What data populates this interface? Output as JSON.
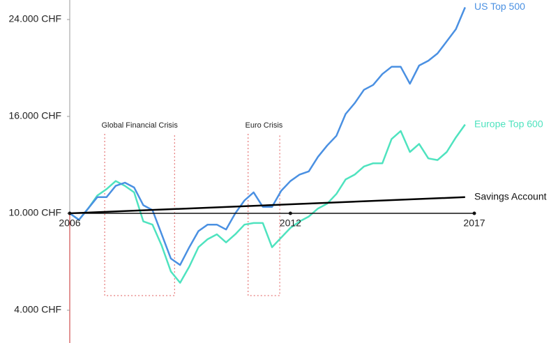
{
  "chart_data": {
    "type": "line",
    "x": [
      2006,
      2006.25,
      2006.5,
      2006.75,
      2007,
      2007.25,
      2007.5,
      2007.75,
      2008,
      2008.25,
      2008.5,
      2008.75,
      2009,
      2009.25,
      2009.5,
      2009.75,
      2010,
      2010.25,
      2010.5,
      2010.75,
      2011,
      2011.25,
      2011.5,
      2011.75,
      2012,
      2012.25,
      2012.5,
      2012.75,
      2013,
      2013.25,
      2013.5,
      2013.75,
      2014,
      2014.25,
      2014.5,
      2014.75,
      2015,
      2015.25,
      2015.5,
      2015.75,
      2016,
      2016.25,
      2016.5,
      2016.75
    ],
    "series": [
      {
        "name": "Europe Top 600",
        "color": "#4fe3bf",
        "values": [
          10000,
          9600,
          10300,
          11100,
          11500,
          12000,
          11700,
          11300,
          9500,
          9300,
          8000,
          6400,
          5700,
          6700,
          7900,
          8400,
          8700,
          8200,
          8700,
          9300,
          9400,
          9400,
          7900,
          8500,
          9100,
          9500,
          9800,
          10300,
          10600,
          11200,
          12100,
          12400,
          12900,
          13100,
          13100,
          14600,
          15100,
          13800,
          14300,
          13400,
          13300,
          13800,
          14700,
          15500
        ]
      },
      {
        "name": "US Top 500",
        "color": "#4a90e2",
        "values": [
          10000,
          9600,
          10300,
          11000,
          11000,
          11700,
          11900,
          11600,
          10500,
          10200,
          8700,
          7200,
          6800,
          7900,
          8900,
          9300,
          9300,
          9000,
          10000,
          10800,
          11300,
          10400,
          10400,
          11400,
          12000,
          12400,
          12600,
          13500,
          14200,
          14800,
          16200,
          17100,
          18200,
          18600,
          19500,
          20100,
          20100,
          18700,
          20200,
          20600,
          21200,
          22200,
          23200,
          25000
        ]
      },
      {
        "name": "Savings Account",
        "color": "#000000",
        "x": [
          2006,
          2016.75
        ],
        "values": [
          10000,
          11000
        ]
      }
    ],
    "annotations": [
      {
        "text": "Global Financial Crisis",
        "x": [
          2006.95,
          2008.85
        ]
      },
      {
        "text": "Euro Crisis",
        "x": [
          2010.85,
          2011.71
        ]
      }
    ],
    "xlim": [
      2006,
      2017
    ],
    "xticks": [
      2006,
      2012,
      2017
    ],
    "ylim": [
      2000,
      25600
    ],
    "yticks": [
      {
        "value": 4000,
        "label": "4.000 CHF"
      },
      {
        "value": 10000,
        "label": "10.000 CHF"
      },
      {
        "value": 16000,
        "label": "16.000 CHF"
      },
      {
        "value": 24000,
        "label": "24.000 CHF"
      }
    ]
  }
}
